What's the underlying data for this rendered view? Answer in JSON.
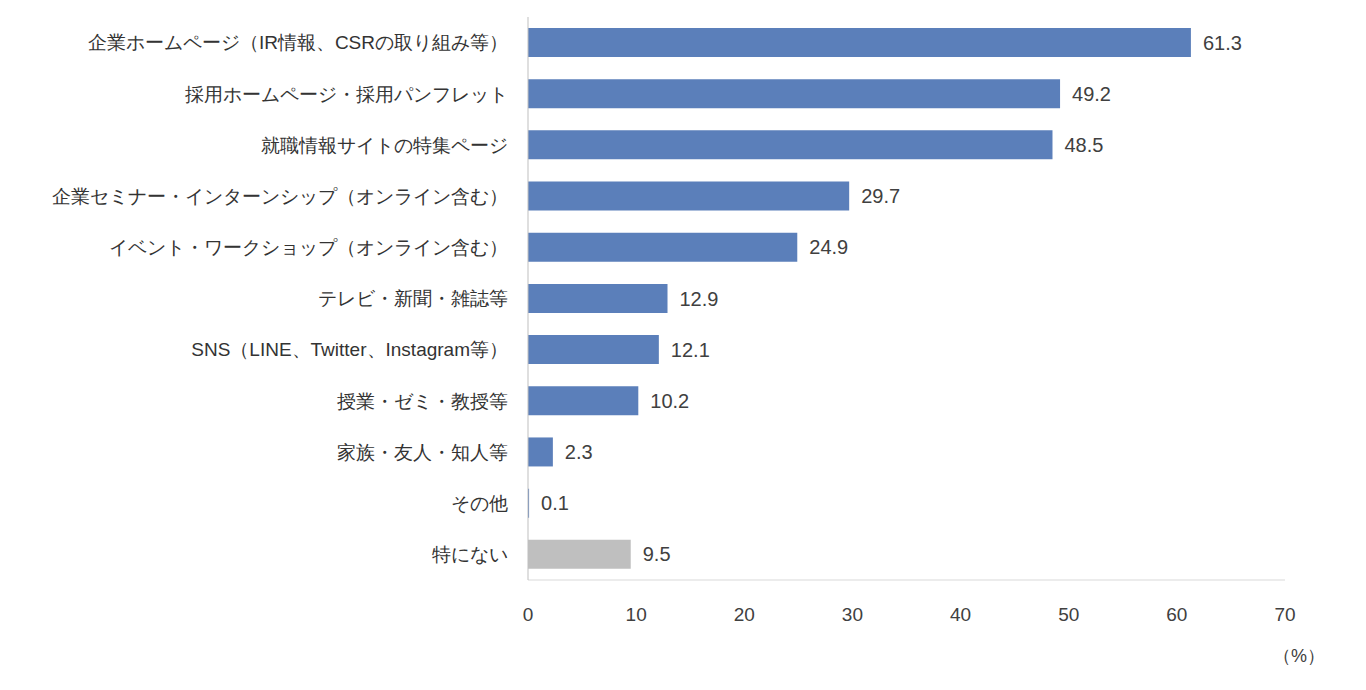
{
  "chart_data": {
    "type": "bar",
    "orientation": "horizontal",
    "categories": [
      "企業ホームページ（IR情報、CSRの取り組み等）",
      "採用ホームページ・採用パンフレット",
      "就職情報サイトの特集ページ",
      "企業セミナー・インターンシップ（オンライン含む）",
      "イベント・ワークショップ（オンライン含む）",
      "テレビ・新聞・雑誌等",
      "SNS（LINE、Twitter、Instagram等）",
      "授業・ゼミ・教授等",
      "家族・友人・知人等",
      "その他",
      "特にない"
    ],
    "values": [
      61.3,
      49.2,
      48.5,
      29.7,
      24.9,
      12.9,
      12.1,
      10.2,
      2.3,
      0.1,
      9.5
    ],
    "colors": [
      "#5b7fba",
      "#5b7fba",
      "#5b7fba",
      "#5b7fba",
      "#5b7fba",
      "#5b7fba",
      "#5b7fba",
      "#5b7fba",
      "#5b7fba",
      "#5b7fba",
      "#bfbfbf"
    ],
    "xlabel": "（%）",
    "xlim": [
      0,
      70
    ],
    "xticks": [
      0,
      10,
      20,
      30,
      40,
      50,
      60,
      70
    ],
    "data_labels": true,
    "grid": false
  }
}
